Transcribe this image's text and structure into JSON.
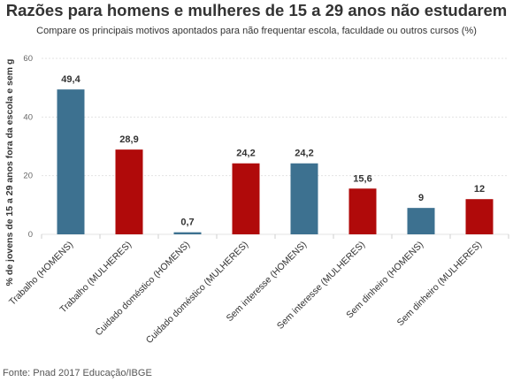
{
  "chart_data": {
    "type": "bar",
    "title": "Razões para homens e mulheres de 15 a 29 anos não estudarem",
    "subtitle": "Compare os principais motivos apontados para não frequentar escola, faculdade ou outros cursos (%)",
    "ylabel": "% de jovens de 15 a 29 anos fora da escola e sem g",
    "xlabel": "",
    "ylim": [
      0,
      60
    ],
    "yticks": [
      0,
      20,
      40,
      60
    ],
    "grid": true,
    "categories": [
      "Trabalho (HOMENS)",
      "Trabalho (MULHERES)",
      "Cuidado doméstico (HOMENS)",
      "Cuidado doméstico (MULHERES)",
      "Sem interesse (HOMENS)",
      "Sem interesse (MULHERES)",
      "Sem dinheiro (HOMENS)",
      "Sem dinheiro (MULHERES)"
    ],
    "values": [
      49.4,
      28.9,
      0.7,
      24.2,
      24.2,
      15.6,
      9,
      12
    ],
    "value_labels": [
      "49,4",
      "28,9",
      "0,7",
      "24,2",
      "24,2",
      "15,6",
      "9",
      "12"
    ],
    "colors": [
      "#3d7190",
      "#b00a0a",
      "#3d7190",
      "#b00a0a",
      "#3d7190",
      "#b00a0a",
      "#3d7190",
      "#b00a0a"
    ]
  },
  "source": "Fonte: Pnad 2017 Educação/IBGE"
}
